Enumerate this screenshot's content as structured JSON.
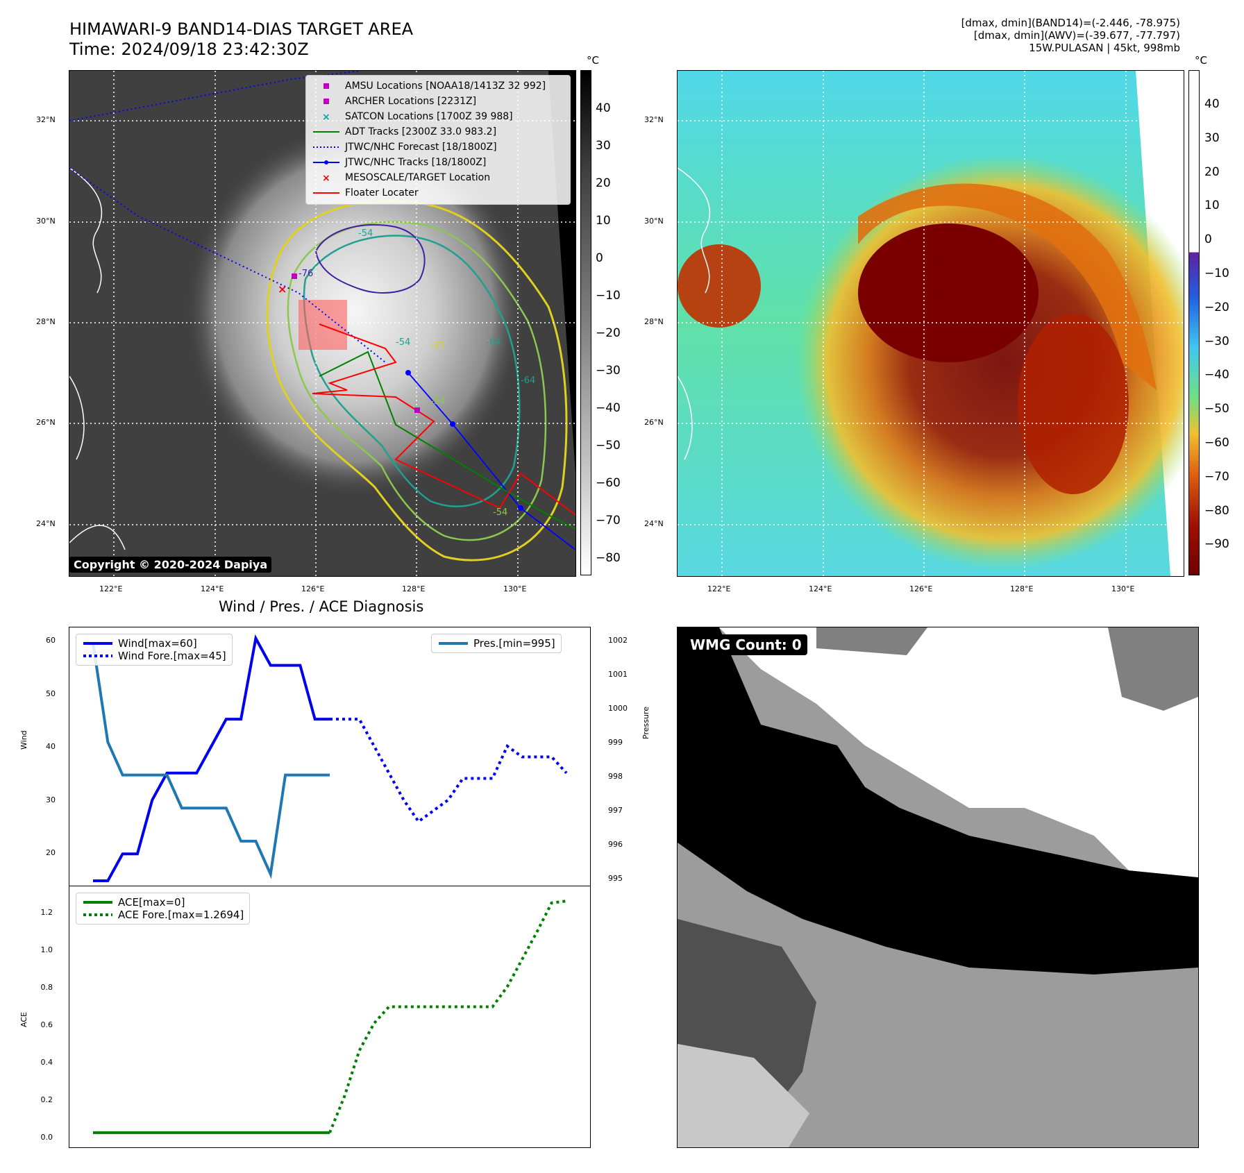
{
  "header": {
    "title_line1": "HIMAWARI-9 BAND14-DIAS TARGET AREA",
    "title_line2": "Time: 2024/09/18 23:42:30Z",
    "info_line1": "[dmax, dmin](BAND14)=(-2.446, -78.975)",
    "info_line2": "[dmax, dmin](AWV)=(-39.677, -77.797)",
    "info_line3": "15W.PULASAN | 45kt, 998mb"
  },
  "map_axes": {
    "lat_labels": [
      "32°N",
      "30°N",
      "28°N",
      "26°N",
      "24°N"
    ],
    "lon_labels": [
      "122°E",
      "124°E",
      "126°E",
      "128°E",
      "130°E"
    ]
  },
  "left_map": {
    "copyright": "Copyright © 2020-2024 Dapiya",
    "colorbar_unit": "°C",
    "colorbar_ticks": [
      "40",
      "30",
      "20",
      "10",
      "0",
      "−10",
      "−20",
      "−30",
      "−40",
      "−50",
      "−60",
      "−70",
      "−80"
    ],
    "contour_labels": [
      "-54",
      "-76",
      "-64",
      "-54",
      "-64",
      "-31",
      "-54",
      "-54"
    ],
    "legend": [
      {
        "label": "AMSU Locations [NOAA18/1413Z 32 992]",
        "marker": "square",
        "color": "#c000c0"
      },
      {
        "label": "ARCHER Locations [2231Z]",
        "marker": "square",
        "color": "#c000c0"
      },
      {
        "label": "SATCON Locations [1700Z 39 988]",
        "marker": "x",
        "color": "#00a8a8"
      },
      {
        "label": "ADT Tracks [2300Z 33.0 983.2]",
        "marker": "line",
        "color": "#008000"
      },
      {
        "label": "JTWC/NHC Forecast [18/1800Z]",
        "marker": "dotted",
        "color": "#0000ff"
      },
      {
        "label": "JTWC/NHC Tracks [18/1800Z]",
        "marker": "line-dot",
        "color": "#0000ff"
      },
      {
        "label": "MESOSCALE/TARGET Location",
        "marker": "x",
        "color": "#ff0000"
      },
      {
        "label": "Floater Locater",
        "marker": "line",
        "color": "#ff0000"
      }
    ]
  },
  "right_map": {
    "colorbar_unit": "°C",
    "colorbar_ticks": [
      "40",
      "30",
      "20",
      "10",
      "0",
      "−10",
      "−20",
      "−30",
      "−40",
      "−50",
      "−60",
      "−70",
      "−80",
      "−90"
    ]
  },
  "diagnosis": {
    "title": "Wind / Pres. / ACE Diagnosis",
    "wind_axis_label": "Wind",
    "pressure_axis_label": "Pressure",
    "ace_axis_label": "ACE",
    "wind_ticks": [
      "60",
      "50",
      "40",
      "30",
      "20"
    ],
    "pressure_ticks": [
      "1002",
      "1001",
      "1000",
      "999",
      "998",
      "997",
      "996",
      "995"
    ],
    "ace_ticks": [
      "1.2",
      "1.0",
      "0.8",
      "0.6",
      "0.4",
      "0.2",
      "0.0"
    ],
    "legend_wind": "Wind[max=60]",
    "legend_wind_fore": "Wind Fore.[max=45]",
    "legend_pres": "Pres.[min=995]",
    "legend_ace": "ACE[max=0]",
    "legend_ace_fore": "ACE Fore.[max=1.2694]"
  },
  "wmg": {
    "label": "WMG Count: 0"
  },
  "chart_data": [
    {
      "type": "line",
      "title": "Wind / Pres. / ACE Diagnosis",
      "ylabel": "Wind",
      "ylim": [
        15,
        61
      ],
      "series": [
        {
          "name": "Wind[max=60]",
          "color": "#0000ee",
          "style": "solid",
          "x": [
            0,
            1,
            2,
            3,
            4,
            5,
            6,
            7,
            8,
            9,
            10,
            11,
            12,
            13,
            14,
            15,
            16
          ],
          "values": [
            15,
            15,
            20,
            20,
            30,
            35,
            35,
            35,
            40,
            45,
            45,
            60,
            55,
            55,
            55,
            45,
            45
          ]
        },
        {
          "name": "Wind Fore.[max=45]",
          "color": "#0000ee",
          "style": "dotted",
          "x": [
            16,
            17,
            18,
            19,
            20,
            21,
            22,
            23,
            24,
            25,
            26,
            27,
            28,
            29,
            30,
            31,
            32
          ],
          "values": [
            45,
            45,
            45,
            40,
            35,
            30,
            26,
            28,
            30,
            34,
            34,
            34,
            40,
            38,
            38,
            38,
            35
          ]
        }
      ]
    },
    {
      "type": "line",
      "ylabel": "Pressure",
      "ylim": [
        994.8,
        1002.3
      ],
      "series": [
        {
          "name": "Pres.[min=995]",
          "color": "#1f77b4",
          "style": "solid",
          "x": [
            0,
            1,
            2,
            3,
            4,
            5,
            6,
            7,
            8,
            9,
            10,
            11,
            12,
            13,
            14,
            15,
            16
          ],
          "values": [
            1002,
            999,
            998,
            998,
            998,
            998,
            997,
            997,
            997,
            997,
            996,
            996,
            995,
            998,
            998,
            998,
            998
          ]
        }
      ]
    },
    {
      "type": "line",
      "ylabel": "ACE",
      "ylim": [
        -0.05,
        1.32
      ],
      "series": [
        {
          "name": "ACE[max=0]",
          "color": "#008000",
          "style": "solid",
          "x": [
            0,
            16
          ],
          "values": [
            0,
            0
          ]
        },
        {
          "name": "ACE Fore.[max=1.2694]",
          "color": "#008000",
          "style": "dotted",
          "x": [
            16,
            17,
            18,
            19,
            20,
            21,
            22,
            23,
            24,
            25,
            26,
            27,
            28,
            29,
            30,
            31,
            32
          ],
          "values": [
            0,
            0.2,
            0.45,
            0.6,
            0.69,
            0.69,
            0.69,
            0.69,
            0.69,
            0.69,
            0.69,
            0.69,
            0.8,
            0.95,
            1.1,
            1.26,
            1.27
          ]
        }
      ]
    }
  ]
}
